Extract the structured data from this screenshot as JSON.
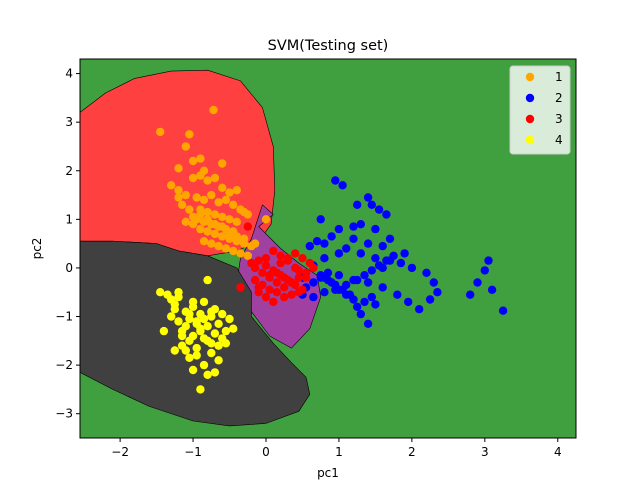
{
  "chart_data": {
    "type": "scatter",
    "title": "SVM(Testing set)",
    "xlabel": "pc1",
    "ylabel": "pc2",
    "xlim": [
      -2.55,
      4.25
    ],
    "ylim": [
      -3.5,
      4.3
    ],
    "xticks": [
      -2,
      -1,
      0,
      1,
      2,
      3,
      4
    ],
    "yticks": [
      -3,
      -2,
      -1,
      0,
      1,
      2,
      3,
      4
    ],
    "grid": false,
    "legend_position": "top-right",
    "background_region_color": "#40a040",
    "regions": [
      {
        "class": "1",
        "color": "#ff4040",
        "outline": [
          [
            -2.55,
            3.2
          ],
          [
            -2.2,
            3.6
          ],
          [
            -1.8,
            3.9
          ],
          [
            -1.3,
            4.05
          ],
          [
            -0.8,
            4.07
          ],
          [
            -0.35,
            3.85
          ],
          [
            -0.05,
            3.3
          ],
          [
            0.1,
            2.5
          ],
          [
            0.12,
            1.6
          ],
          [
            0.07,
            0.9
          ],
          [
            -0.1,
            0.55
          ],
          [
            -0.4,
            0.35
          ],
          [
            -0.8,
            0.25
          ],
          [
            -1.2,
            0.35
          ],
          [
            -1.5,
            0.5
          ],
          [
            -2.1,
            0.55
          ],
          [
            -2.55,
            0.55
          ]
        ]
      },
      {
        "class": "3",
        "color": "#a040a0",
        "outline": [
          [
            -0.1,
            0.85
          ],
          [
            0.2,
            0.4
          ],
          [
            0.45,
            0.1
          ],
          [
            0.7,
            -0.15
          ],
          [
            0.75,
            -0.6
          ],
          [
            0.6,
            -1.25
          ],
          [
            0.35,
            -1.65
          ],
          [
            0.05,
            -1.4
          ],
          [
            -0.2,
            -0.9
          ],
          [
            -0.4,
            -0.3
          ],
          [
            -0.35,
            0.2
          ],
          [
            -0.2,
            0.6
          ],
          [
            -0.05,
            1.3
          ],
          [
            0.1,
            1.1
          ]
        ]
      },
      {
        "class": "4",
        "color": "#404040",
        "outline": [
          [
            -2.55,
            0.55
          ],
          [
            -2.1,
            0.55
          ],
          [
            -1.5,
            0.5
          ],
          [
            -1.2,
            0.35
          ],
          [
            -0.8,
            0.25
          ],
          [
            -0.4,
            0.0
          ],
          [
            -0.2,
            -0.5
          ],
          [
            -0.2,
            -1.0
          ],
          [
            0.1,
            -1.55
          ],
          [
            0.35,
            -1.95
          ],
          [
            0.55,
            -2.25
          ],
          [
            0.6,
            -2.6
          ],
          [
            0.45,
            -2.95
          ],
          [
            0.0,
            -3.2
          ],
          [
            -0.5,
            -3.25
          ],
          [
            -1.0,
            -3.15
          ],
          [
            -1.6,
            -2.85
          ],
          [
            -2.1,
            -2.5
          ],
          [
            -2.55,
            -2.15
          ]
        ]
      }
    ],
    "series": [
      {
        "name": "1",
        "color": "#ffa500",
        "x": [
          -0.72,
          -1.45,
          -1.05,
          -1.1,
          -0.9,
          -1.0,
          -0.6,
          -1.2,
          -0.85,
          -0.9,
          -1.0,
          -0.8,
          -0.7,
          -1.3,
          -1.2,
          -0.6,
          -0.5,
          -0.4,
          -1.1,
          -0.75,
          -0.95,
          -0.85,
          -0.65,
          -0.55,
          -0.45,
          -0.35,
          -0.3,
          -0.25,
          -1.15,
          -1.05,
          -0.9,
          -0.8,
          -0.7,
          -0.6,
          -0.5,
          -0.4,
          -0.95,
          -0.85,
          -0.75,
          -0.65,
          -0.55,
          -0.45,
          -1.0,
          -0.9,
          -0.8,
          -0.7,
          -0.6,
          -0.5,
          -0.4,
          -0.3,
          -0.2,
          -1.1,
          -1.0,
          -0.9,
          -0.8,
          -0.7,
          -0.6,
          -0.5,
          -0.4,
          -0.3,
          -0.85,
          -0.75,
          -0.65,
          -0.55,
          -0.45,
          -0.35,
          -0.25,
          0.0,
          -0.15,
          -1.2
        ],
        "y": [
          3.25,
          2.8,
          2.75,
          2.5,
          2.25,
          2.2,
          2.15,
          2.05,
          2.0,
          1.9,
          1.85,
          1.8,
          1.85,
          1.7,
          1.6,
          1.65,
          1.55,
          1.6,
          1.5,
          1.5,
          1.45,
          1.4,
          1.35,
          1.4,
          1.3,
          1.2,
          1.15,
          1.1,
          1.3,
          1.2,
          1.2,
          1.15,
          1.1,
          1.05,
          1.0,
          0.95,
          1.0,
          0.95,
          0.9,
          0.85,
          0.8,
          0.75,
          0.9,
          0.8,
          0.75,
          0.7,
          0.65,
          0.6,
          0.55,
          0.5,
          0.45,
          0.95,
          1.05,
          1.1,
          1.0,
          0.9,
          0.85,
          0.7,
          0.65,
          0.6,
          0.55,
          0.5,
          0.45,
          0.4,
          0.35,
          0.3,
          0.25,
          1.0,
          0.5,
          1.45
        ]
      },
      {
        "name": "2",
        "color": "#0000ff",
        "x": [
          0.5,
          0.75,
          0.95,
          1.05,
          1.25,
          1.4,
          1.45,
          1.55,
          1.65,
          1.2,
          1.0,
          0.9,
          0.7,
          0.6,
          0.8,
          1.1,
          1.3,
          1.5,
          1.7,
          1.85,
          2.0,
          2.2,
          2.3,
          2.35,
          2.25,
          2.1,
          1.95,
          1.8,
          1.6,
          1.4,
          1.2,
          1.0,
          0.85,
          0.75,
          0.65,
          0.55,
          0.5,
          0.65,
          0.8,
          0.95,
          1.1,
          1.25,
          1.35,
          1.45,
          1.55,
          1.65,
          1.75,
          1.9,
          1.45,
          1.35,
          1.25,
          1.15,
          1.05,
          0.95,
          0.85,
          0.75,
          0.65,
          1.5,
          1.4,
          1.3,
          1.2,
          1.1,
          1.0,
          0.9,
          0.8,
          2.8,
          2.9,
          3.0,
          3.05,
          3.1,
          3.25,
          1.6,
          1.7,
          1.5,
          1.3,
          1.6,
          1.4,
          1.2,
          1.0,
          0.8
        ],
        "y": [
          -0.2,
          1.0,
          1.8,
          1.7,
          1.3,
          1.45,
          1.3,
          1.2,
          1.1,
          0.85,
          0.8,
          0.65,
          0.55,
          0.45,
          0.2,
          0.4,
          0.3,
          0.2,
          0.15,
          0.1,
          0.0,
          -0.1,
          -0.3,
          -0.5,
          -0.65,
          -0.85,
          -0.7,
          -0.55,
          -0.4,
          -0.3,
          -0.25,
          -0.15,
          -0.1,
          -0.2,
          -0.3,
          -0.4,
          -0.55,
          -0.6,
          -0.5,
          -0.45,
          -0.35,
          -0.25,
          -0.15,
          -0.05,
          0.05,
          0.15,
          0.25,
          0.3,
          -0.6,
          -0.7,
          -0.8,
          -0.55,
          -0.45,
          -0.35,
          -0.25,
          -0.15,
          0.05,
          -0.75,
          -1.15,
          -0.95,
          -0.65,
          -0.55,
          -0.45,
          -0.3,
          -0.2,
          -0.55,
          -0.3,
          -0.05,
          0.15,
          -0.45,
          -0.88,
          0.45,
          0.6,
          0.8,
          0.9,
          0.0,
          0.5,
          0.6,
          0.3,
          0.5
        ]
      },
      {
        "name": "3",
        "color": "#ff0000",
        "x": [
          -0.25,
          -0.35,
          -0.1,
          0.0,
          0.1,
          0.2,
          0.3,
          0.4,
          0.5,
          0.6,
          0.65,
          0.55,
          0.45,
          0.35,
          0.25,
          0.15,
          0.05,
          -0.05,
          -0.15,
          -0.2,
          -0.1,
          0.0,
          0.1,
          0.2,
          0.3,
          0.4,
          0.5,
          0.45,
          0.35,
          0.25,
          0.15,
          0.05,
          -0.05,
          -0.15,
          0.2,
          0.3,
          0.4,
          0.1,
          0.0,
          -0.1,
          0.15,
          0.25,
          0.35,
          0.45,
          0.55,
          0.05
        ],
        "y": [
          0.85,
          -0.4,
          -0.5,
          0.2,
          0.35,
          0.25,
          0.15,
          0.3,
          0.2,
          0.1,
          0.0,
          -0.1,
          -0.2,
          -0.3,
          -0.4,
          -0.3,
          -0.2,
          -0.1,
          0.0,
          0.1,
          0.15,
          0.05,
          -0.05,
          -0.15,
          -0.25,
          -0.35,
          -0.45,
          -0.5,
          -0.55,
          -0.6,
          -0.5,
          -0.45,
          -0.35,
          -0.25,
          0.1,
          0.2,
          0.0,
          -0.7,
          -0.6,
          -0.4,
          -0.1,
          -0.2,
          -0.3,
          -0.05,
          -0.2,
          -0.15
        ]
      },
      {
        "name": "4",
        "color": "#ffff00",
        "x": [
          -1.45,
          -1.4,
          -1.3,
          -1.25,
          -1.2,
          -1.15,
          -1.1,
          -1.05,
          -1.0,
          -0.95,
          -0.9,
          -0.85,
          -0.8,
          -0.75,
          -0.7,
          -0.65,
          -0.6,
          -0.55,
          -0.5,
          -0.45,
          -1.3,
          -1.25,
          -1.2,
          -1.15,
          -1.1,
          -1.05,
          -1.0,
          -0.95,
          -0.9,
          -0.85,
          -0.8,
          -0.75,
          -0.7,
          -0.65,
          -0.6,
          -0.55,
          -1.35,
          -1.25,
          -1.15,
          -1.05,
          -0.95,
          -0.85,
          -0.75,
          -0.65,
          -1.0,
          -0.9,
          -0.8,
          -0.7,
          -1.1,
          -1.2,
          -1.0,
          -0.8,
          -0.9,
          -1.05,
          -0.95,
          -0.75,
          -0.85
        ],
        "y": [
          -0.5,
          -1.3,
          -1.0,
          -0.75,
          -0.6,
          -1.4,
          -0.9,
          -1.05,
          -0.8,
          -1.1,
          -0.95,
          -0.7,
          -1.2,
          -1.0,
          -0.85,
          -1.15,
          -0.95,
          -1.3,
          -1.05,
          -1.25,
          -0.65,
          -0.85,
          -1.1,
          -1.3,
          -1.2,
          -0.95,
          -1.4,
          -1.15,
          -1.3,
          -1.45,
          -1.5,
          -1.55,
          -1.35,
          -1.6,
          -1.45,
          -1.55,
          -0.55,
          -1.7,
          -1.6,
          -1.85,
          -1.8,
          -2.0,
          -1.75,
          -1.9,
          -2.1,
          -2.5,
          -2.2,
          -2.15,
          -1.7,
          -0.5,
          -0.7,
          -0.25,
          -1.25,
          -1.5,
          -1.65,
          -0.9,
          -1.05
        ]
      }
    ]
  }
}
